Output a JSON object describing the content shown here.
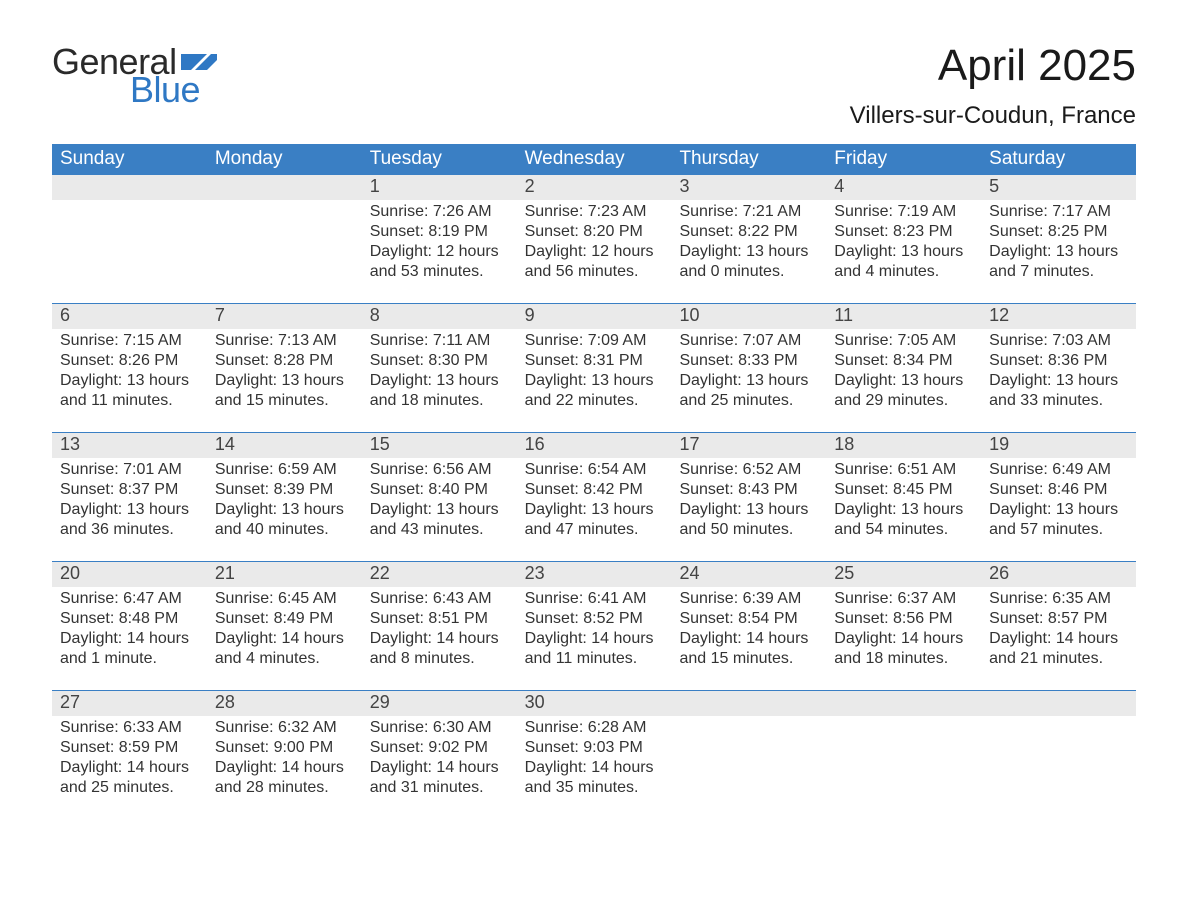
{
  "brand": {
    "word1": "General",
    "word2": "Blue",
    "word1_color": "#2a2a2a",
    "word2_color": "#2f78c4",
    "flag_color": "#2f78c4"
  },
  "title": {
    "month": "April 2025",
    "location": "Villers-sur-Coudun, France",
    "title_fontsize": 44,
    "location_fontsize": 24,
    "title_color": "#1a1a1a"
  },
  "colors": {
    "header_bg": "#3a7fc4",
    "header_text": "#ffffff",
    "daynum_bg": "#eaeaea",
    "week_border": "#3a7fc4",
    "body_text": "#333333",
    "background": "#ffffff"
  },
  "typography": {
    "body_fontsize": 16,
    "weekday_fontsize": 19,
    "daynum_fontsize": 18,
    "font_family": "Segoe UI"
  },
  "weekdays": [
    "Sunday",
    "Monday",
    "Tuesday",
    "Wednesday",
    "Thursday",
    "Friday",
    "Saturday"
  ],
  "weeks": [
    [
      {
        "num": "",
        "sunrise": "",
        "sunset": "",
        "daylight": ""
      },
      {
        "num": "",
        "sunrise": "",
        "sunset": "",
        "daylight": ""
      },
      {
        "num": "1",
        "sunrise": "Sunrise: 7:26 AM",
        "sunset": "Sunset: 8:19 PM",
        "daylight": "Daylight: 12 hours and 53 minutes."
      },
      {
        "num": "2",
        "sunrise": "Sunrise: 7:23 AM",
        "sunset": "Sunset: 8:20 PM",
        "daylight": "Daylight: 12 hours and 56 minutes."
      },
      {
        "num": "3",
        "sunrise": "Sunrise: 7:21 AM",
        "sunset": "Sunset: 8:22 PM",
        "daylight": "Daylight: 13 hours and 0 minutes."
      },
      {
        "num": "4",
        "sunrise": "Sunrise: 7:19 AM",
        "sunset": "Sunset: 8:23 PM",
        "daylight": "Daylight: 13 hours and 4 minutes."
      },
      {
        "num": "5",
        "sunrise": "Sunrise: 7:17 AM",
        "sunset": "Sunset: 8:25 PM",
        "daylight": "Daylight: 13 hours and 7 minutes."
      }
    ],
    [
      {
        "num": "6",
        "sunrise": "Sunrise: 7:15 AM",
        "sunset": "Sunset: 8:26 PM",
        "daylight": "Daylight: 13 hours and 11 minutes."
      },
      {
        "num": "7",
        "sunrise": "Sunrise: 7:13 AM",
        "sunset": "Sunset: 8:28 PM",
        "daylight": "Daylight: 13 hours and 15 minutes."
      },
      {
        "num": "8",
        "sunrise": "Sunrise: 7:11 AM",
        "sunset": "Sunset: 8:30 PM",
        "daylight": "Daylight: 13 hours and 18 minutes."
      },
      {
        "num": "9",
        "sunrise": "Sunrise: 7:09 AM",
        "sunset": "Sunset: 8:31 PM",
        "daylight": "Daylight: 13 hours and 22 minutes."
      },
      {
        "num": "10",
        "sunrise": "Sunrise: 7:07 AM",
        "sunset": "Sunset: 8:33 PM",
        "daylight": "Daylight: 13 hours and 25 minutes."
      },
      {
        "num": "11",
        "sunrise": "Sunrise: 7:05 AM",
        "sunset": "Sunset: 8:34 PM",
        "daylight": "Daylight: 13 hours and 29 minutes."
      },
      {
        "num": "12",
        "sunrise": "Sunrise: 7:03 AM",
        "sunset": "Sunset: 8:36 PM",
        "daylight": "Daylight: 13 hours and 33 minutes."
      }
    ],
    [
      {
        "num": "13",
        "sunrise": "Sunrise: 7:01 AM",
        "sunset": "Sunset: 8:37 PM",
        "daylight": "Daylight: 13 hours and 36 minutes."
      },
      {
        "num": "14",
        "sunrise": "Sunrise: 6:59 AM",
        "sunset": "Sunset: 8:39 PM",
        "daylight": "Daylight: 13 hours and 40 minutes."
      },
      {
        "num": "15",
        "sunrise": "Sunrise: 6:56 AM",
        "sunset": "Sunset: 8:40 PM",
        "daylight": "Daylight: 13 hours and 43 minutes."
      },
      {
        "num": "16",
        "sunrise": "Sunrise: 6:54 AM",
        "sunset": "Sunset: 8:42 PM",
        "daylight": "Daylight: 13 hours and 47 minutes."
      },
      {
        "num": "17",
        "sunrise": "Sunrise: 6:52 AM",
        "sunset": "Sunset: 8:43 PM",
        "daylight": "Daylight: 13 hours and 50 minutes."
      },
      {
        "num": "18",
        "sunrise": "Sunrise: 6:51 AM",
        "sunset": "Sunset: 8:45 PM",
        "daylight": "Daylight: 13 hours and 54 minutes."
      },
      {
        "num": "19",
        "sunrise": "Sunrise: 6:49 AM",
        "sunset": "Sunset: 8:46 PM",
        "daylight": "Daylight: 13 hours and 57 minutes."
      }
    ],
    [
      {
        "num": "20",
        "sunrise": "Sunrise: 6:47 AM",
        "sunset": "Sunset: 8:48 PM",
        "daylight": "Daylight: 14 hours and 1 minute."
      },
      {
        "num": "21",
        "sunrise": "Sunrise: 6:45 AM",
        "sunset": "Sunset: 8:49 PM",
        "daylight": "Daylight: 14 hours and 4 minutes."
      },
      {
        "num": "22",
        "sunrise": "Sunrise: 6:43 AM",
        "sunset": "Sunset: 8:51 PM",
        "daylight": "Daylight: 14 hours and 8 minutes."
      },
      {
        "num": "23",
        "sunrise": "Sunrise: 6:41 AM",
        "sunset": "Sunset: 8:52 PM",
        "daylight": "Daylight: 14 hours and 11 minutes."
      },
      {
        "num": "24",
        "sunrise": "Sunrise: 6:39 AM",
        "sunset": "Sunset: 8:54 PM",
        "daylight": "Daylight: 14 hours and 15 minutes."
      },
      {
        "num": "25",
        "sunrise": "Sunrise: 6:37 AM",
        "sunset": "Sunset: 8:56 PM",
        "daylight": "Daylight: 14 hours and 18 minutes."
      },
      {
        "num": "26",
        "sunrise": "Sunrise: 6:35 AM",
        "sunset": "Sunset: 8:57 PM",
        "daylight": "Daylight: 14 hours and 21 minutes."
      }
    ],
    [
      {
        "num": "27",
        "sunrise": "Sunrise: 6:33 AM",
        "sunset": "Sunset: 8:59 PM",
        "daylight": "Daylight: 14 hours and 25 minutes."
      },
      {
        "num": "28",
        "sunrise": "Sunrise: 6:32 AM",
        "sunset": "Sunset: 9:00 PM",
        "daylight": "Daylight: 14 hours and 28 minutes."
      },
      {
        "num": "29",
        "sunrise": "Sunrise: 6:30 AM",
        "sunset": "Sunset: 9:02 PM",
        "daylight": "Daylight: 14 hours and 31 minutes."
      },
      {
        "num": "30",
        "sunrise": "Sunrise: 6:28 AM",
        "sunset": "Sunset: 9:03 PM",
        "daylight": "Daylight: 14 hours and 35 minutes."
      },
      {
        "num": "",
        "sunrise": "",
        "sunset": "",
        "daylight": ""
      },
      {
        "num": "",
        "sunrise": "",
        "sunset": "",
        "daylight": ""
      },
      {
        "num": "",
        "sunrise": "",
        "sunset": "",
        "daylight": ""
      }
    ]
  ]
}
